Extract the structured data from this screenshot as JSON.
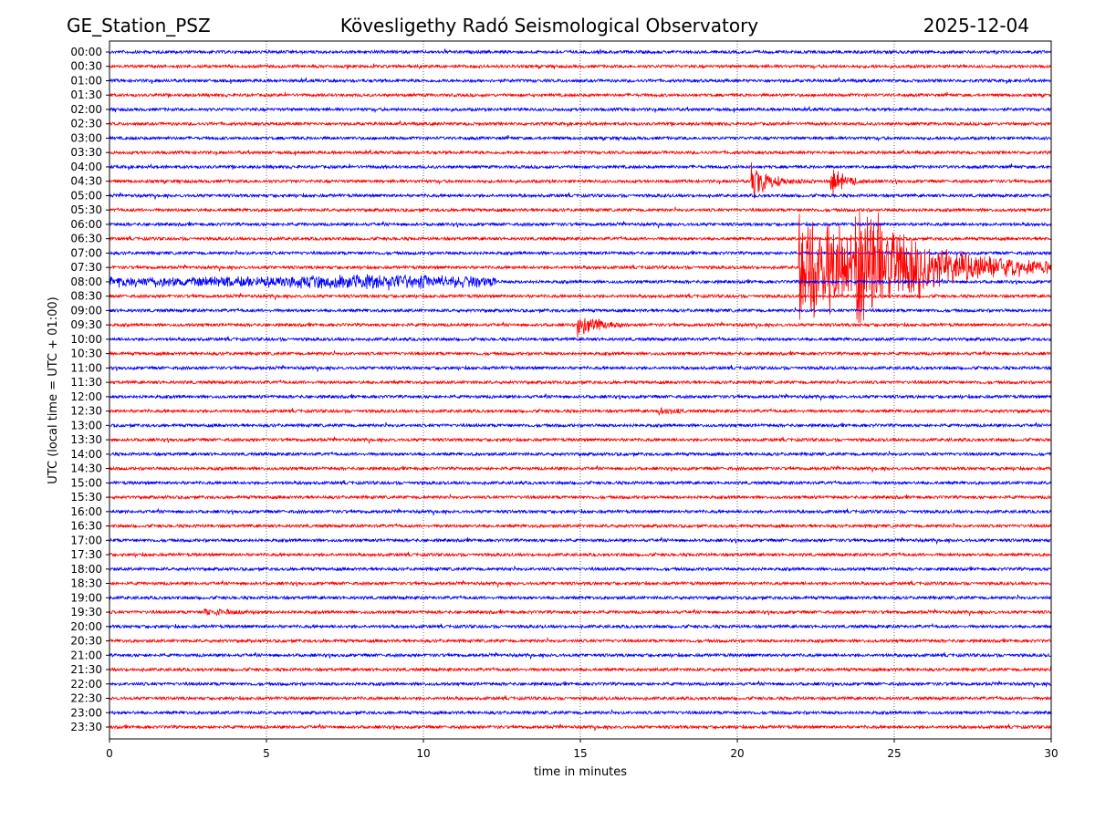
{
  "header": {
    "station": "GE_Station_PSZ",
    "title": "Kövesligethy Radó Seismological Observatory",
    "date": "2025-12-04"
  },
  "chart_data": {
    "type": "line",
    "title": "Kövesligethy Radó Seismological Observatory",
    "xlabel": "time in minutes",
    "ylabel": "UTC (local time = UTC + 01:00)",
    "xlim": [
      0,
      30
    ],
    "xticks": [
      "0",
      "5",
      "10",
      "15",
      "20",
      "25",
      "30"
    ],
    "grid": "vertical dotted at each x tick",
    "trace_colors": [
      "#0000ff",
      "#ff0000"
    ],
    "traces": [
      "00:00",
      "00:30",
      "01:00",
      "01:30",
      "02:00",
      "02:30",
      "03:00",
      "03:30",
      "04:00",
      "04:30",
      "05:00",
      "05:30",
      "06:00",
      "06:30",
      "07:00",
      "07:30",
      "08:00",
      "08:30",
      "09:00",
      "09:30",
      "10:00",
      "10:30",
      "11:00",
      "11:30",
      "12:00",
      "12:30",
      "13:00",
      "13:30",
      "14:00",
      "14:30",
      "15:00",
      "15:30",
      "16:00",
      "16:30",
      "17:00",
      "17:30",
      "18:00",
      "18:30",
      "19:00",
      "19:30",
      "20:00",
      "20:30",
      "21:00",
      "21:30",
      "22:00",
      "22:30",
      "23:00",
      "23:30"
    ],
    "events": [
      {
        "trace": "04:30",
        "start_min": 20.45,
        "amplitude": 1.1,
        "decay_min": 0.5,
        "end_min": 22.5
      },
      {
        "trace": "04:30",
        "start_min": 22.95,
        "amplitude": 0.9,
        "decay_min": 0.4,
        "end_min": 24.5
      },
      {
        "trace": "07:30",
        "start_min": 21.95,
        "amplitude": 3.5,
        "decay_min": 2.5,
        "end_min": 30
      },
      {
        "trace": "07:30",
        "start_min": 23.75,
        "amplitude": 3.8,
        "decay_min": 0.3,
        "end_min": 26
      },
      {
        "trace": "07:30",
        "start_min": 24.1,
        "amplitude": 1.5,
        "decay_min": 2.5,
        "end_min": 30
      },
      {
        "trace": "08:00",
        "start_min": 0,
        "amplitude": 0.35,
        "decay_min": 0,
        "end_min": 12.3
      },
      {
        "trace": "09:30",
        "start_min": 14.9,
        "amplitude": 0.8,
        "decay_min": 0.6,
        "end_min": 16.3
      },
      {
        "trace": "12:30",
        "start_min": 17.5,
        "amplitude": 0.25,
        "decay_min": 0.4,
        "end_min": 18.3
      },
      {
        "trace": "19:30",
        "start_min": 3.0,
        "amplitude": 0.2,
        "decay_min": 0.8,
        "end_min": 5.0
      }
    ]
  }
}
